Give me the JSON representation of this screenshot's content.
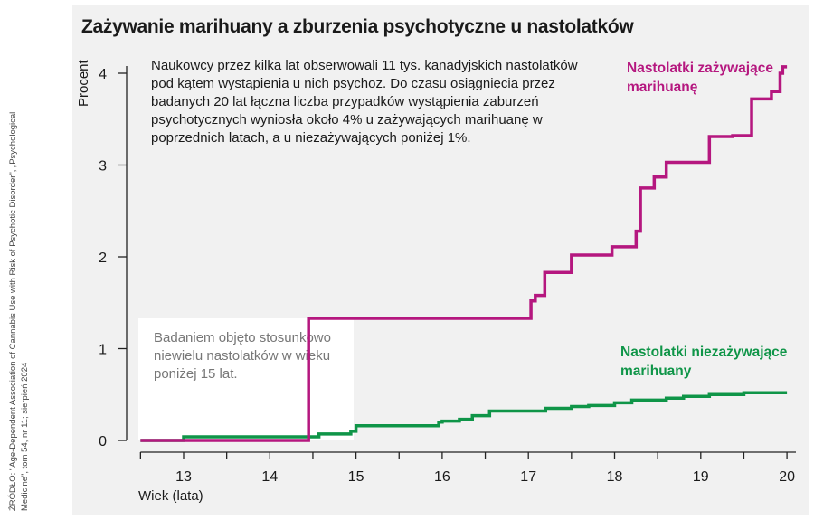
{
  "source": "ŹRÓDŁO: \"Age-Dependent Association of Cannabis Use with Risk of Psychotic Disorder\", „Psychological Medicine\", tom 54, nr 11; sierpień 2024",
  "chart_data": {
    "type": "line",
    "step": true,
    "title": "Zażywanie marihuany a zburzenia psychotyczne u nastolatków",
    "xlabel": "Wiek (lata)",
    "ylabel": "Procent",
    "xlim": [
      12.5,
      20
    ],
    "ylim": [
      0,
      4
    ],
    "xticks": [
      13,
      14,
      15,
      16,
      17,
      18,
      19,
      20
    ],
    "yticks": [
      0,
      1,
      2,
      3,
      4
    ],
    "description": "Naukowcy przez kilka lat obserwowali 11 tys. kanadyjskich nastolatków pod kątem wystąpienia u nich psychoz. Do czasu osiągnięcia przez badanych 20 lat łączna liczba przypadków wystąpienia zaburzeń psychotycznych wyniosła około 4% u zażywających marihuanę w poprzednich latach, a u niezażywających poniżej 1%.",
    "annotation": "Badaniem objęto stosunkowo niewielu nastolatków w wieku poniżej 15 lat.",
    "series": [
      {
        "name": "Nastolatki zażywające marihuanę",
        "color": "#b5177f",
        "steps": [
          [
            12.5,
            0
          ],
          [
            14.45,
            1.33
          ],
          [
            17.03,
            1.52
          ],
          [
            17.08,
            1.58
          ],
          [
            17.19,
            1.83
          ],
          [
            17.5,
            2.02
          ],
          [
            17.97,
            2.11
          ],
          [
            18.25,
            2.28
          ],
          [
            18.3,
            2.75
          ],
          [
            18.46,
            2.87
          ],
          [
            18.6,
            3.03
          ],
          [
            19.1,
            3.31
          ],
          [
            19.37,
            3.32
          ],
          [
            19.59,
            3.72
          ],
          [
            19.82,
            3.8
          ],
          [
            19.92,
            4.0
          ],
          [
            19.95,
            4.07
          ]
        ]
      },
      {
        "name": "Nastolatki niezażywające marihuany",
        "color": "#0f9548",
        "steps": [
          [
            12.5,
            0
          ],
          [
            13.0,
            0.04
          ],
          [
            14.57,
            0.07
          ],
          [
            14.94,
            0.1
          ],
          [
            15.0,
            0.16
          ],
          [
            15.96,
            0.2
          ],
          [
            16.0,
            0.21
          ],
          [
            16.2,
            0.23
          ],
          [
            16.35,
            0.27
          ],
          [
            16.55,
            0.32
          ],
          [
            17.2,
            0.35
          ],
          [
            17.5,
            0.37
          ],
          [
            17.7,
            0.38
          ],
          [
            18.0,
            0.41
          ],
          [
            18.2,
            0.44
          ],
          [
            18.6,
            0.46
          ],
          [
            18.8,
            0.48
          ],
          [
            19.1,
            0.5
          ],
          [
            19.5,
            0.52
          ]
        ]
      }
    ],
    "labels": {
      "users": "Nastolatki zażywające marihuanę",
      "nonusers": "Nastolatki niezażywające marihuany"
    }
  }
}
